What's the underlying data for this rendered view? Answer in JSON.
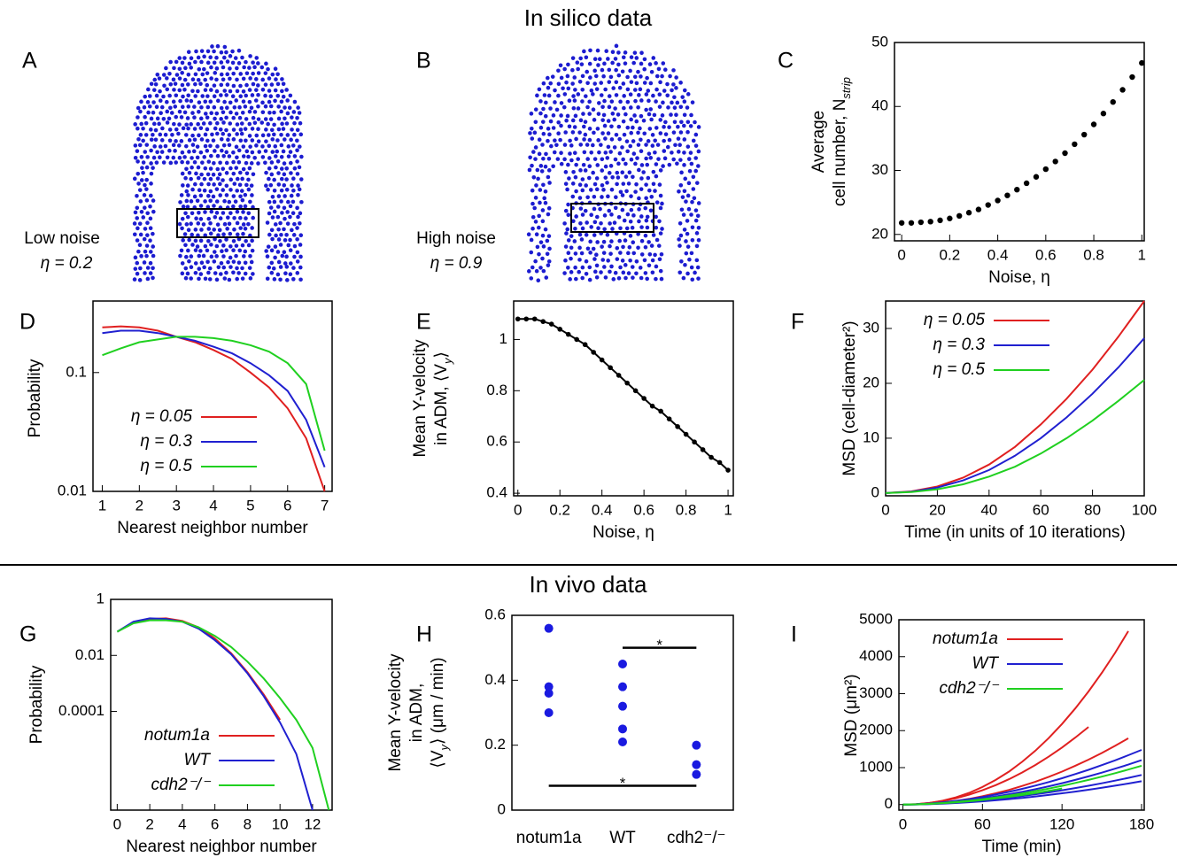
{
  "sections": [
    "In silico data",
    "In vivo data"
  ],
  "simulations": [
    {
      "label": "A",
      "caption": "Low noise",
      "eta": "η = 0.2"
    },
    {
      "label": "B",
      "caption": "High noise",
      "eta": "η = 0.9"
    }
  ],
  "chart_data": [
    {
      "type": "scatter",
      "label": "C",
      "x_label": "Noise, η",
      "y_label": [
        "Average",
        {
          "text": "cell number, N",
          "sub": "strip"
        }
      ],
      "color": "#000000",
      "x": [
        0,
        0.04,
        0.08,
        0.12,
        0.16,
        0.2,
        0.24,
        0.28,
        0.32,
        0.36,
        0.4,
        0.44,
        0.48,
        0.52,
        0.56,
        0.6,
        0.64,
        0.68,
        0.72,
        0.76,
        0.8,
        0.84,
        0.88,
        0.92,
        0.96,
        1
      ],
      "values": [
        21.8,
        21.8,
        21.9,
        22.0,
        22.2,
        22.5,
        22.9,
        23.4,
        23.9,
        24.6,
        25.3,
        26.1,
        27.0,
        28.0,
        29.0,
        30.2,
        31.4,
        32.7,
        34.1,
        35.6,
        37.2,
        38.9,
        40.7,
        42.6,
        44.6,
        46.8
      ],
      "xlim": [
        -0.03,
        1.01
      ],
      "xticks": [
        0,
        0.2,
        0.4,
        0.6,
        0.8,
        1
      ],
      "ylim": [
        19,
        50
      ],
      "yticks": [
        20,
        30,
        40,
        50
      ]
    },
    {
      "type": "line",
      "label": "D",
      "x_label": "Nearest neighbor number",
      "y_label": [
        "Probability"
      ],
      "log_y": true,
      "legend": "lower left",
      "x": [
        1,
        1.5,
        2,
        2.5,
        3,
        3.5,
        4,
        4.5,
        5,
        5.5,
        6,
        6.5,
        7
      ],
      "series": [
        {
          "name": "η = 0.05",
          "color": "#e02020",
          "values": [
            0.24,
            0.245,
            0.24,
            0.225,
            0.2,
            0.18,
            0.155,
            0.13,
            0.1,
            0.075,
            0.05,
            0.028,
            0.01
          ]
        },
        {
          "name": "η = 0.3",
          "color": "#2020d0",
          "values": [
            0.215,
            0.225,
            0.225,
            0.215,
            0.2,
            0.185,
            0.165,
            0.145,
            0.12,
            0.095,
            0.07,
            0.04,
            0.016
          ]
        },
        {
          "name": "η = 0.5",
          "color": "#20d020",
          "values": [
            0.14,
            0.16,
            0.18,
            0.19,
            0.2,
            0.2,
            0.195,
            0.185,
            0.17,
            0.15,
            0.12,
            0.08,
            0.022
          ]
        }
      ],
      "xlim": [
        0.75,
        7.2
      ],
      "xticks": [
        1,
        2,
        3,
        4,
        5,
        6,
        7
      ],
      "ylim": [
        0.01,
        0.4
      ],
      "yticks": [
        0.01,
        0.1
      ]
    },
    {
      "type": "line",
      "label": "E",
      "markers": true,
      "x_label": "Noise, η",
      "y_label": [
        "Mean Y-velocity",
        {
          "text": "in ADM, ⟨V",
          "sub": "y",
          "after": "⟩"
        }
      ],
      "color": "#000000",
      "x": [
        0,
        0.04,
        0.08,
        0.12,
        0.16,
        0.2,
        0.24,
        0.28,
        0.32,
        0.36,
        0.4,
        0.44,
        0.48,
        0.52,
        0.56,
        0.6,
        0.64,
        0.68,
        0.72,
        0.76,
        0.8,
        0.84,
        0.88,
        0.92,
        0.96,
        1
      ],
      "series": [
        {
          "color": "#000000",
          "values": [
            1.08,
            1.08,
            1.08,
            1.07,
            1.06,
            1.04,
            1.02,
            1.0,
            0.98,
            0.95,
            0.92,
            0.89,
            0.86,
            0.83,
            0.8,
            0.77,
            0.74,
            0.72,
            0.69,
            0.66,
            0.63,
            0.6,
            0.57,
            0.54,
            0.52,
            0.49
          ]
        }
      ],
      "xlim": [
        -0.02,
        1.025
      ],
      "xticks": [
        0,
        0.2,
        0.4,
        0.6,
        0.8,
        1
      ],
      "ylim": [
        0.39,
        1.15
      ],
      "yticks": [
        0.4,
        0.6,
        0.8,
        1
      ]
    },
    {
      "type": "line",
      "label": "F",
      "x_label": "Time (in units of 10 iterations)",
      "y_label": [
        "MSD (cell-diameter²)"
      ],
      "legend": "upper left",
      "x": [
        0,
        10,
        20,
        30,
        40,
        50,
        60,
        70,
        80,
        90,
        100
      ],
      "series": [
        {
          "name": "η = 0.05",
          "color": "#e02020",
          "values": [
            0,
            0.3,
            1.2,
            2.8,
            5.2,
            8.4,
            12.5,
            17.2,
            22.5,
            28.5,
            35
          ]
        },
        {
          "name": "η = 0.3",
          "color": "#2020d0",
          "values": [
            0,
            0.25,
            1,
            2.3,
            4.2,
            6.8,
            10,
            13.8,
            18.1,
            22.9,
            28.2
          ]
        },
        {
          "name": "η = 0.5",
          "color": "#20d020",
          "values": [
            0,
            0.2,
            0.7,
            1.6,
            3,
            4.8,
            7.2,
            10,
            13.2,
            16.8,
            20.6
          ]
        }
      ],
      "xlim": [
        0,
        100
      ],
      "xticks": [
        0,
        20,
        40,
        60,
        80,
        100
      ],
      "ylim": [
        -0.5,
        35
      ],
      "yticks": [
        0,
        10,
        20,
        30
      ]
    },
    {
      "type": "line",
      "label": "G",
      "x_label": "Nearest neighbor number",
      "y_label": [
        "Probability"
      ],
      "log_y": true,
      "legend": "lower left",
      "x": [
        0,
        1,
        2,
        3,
        4,
        5,
        6,
        7,
        8,
        9,
        10,
        11,
        12,
        13
      ],
      "series": [
        {
          "name": "notum1a",
          "color": "#e02020",
          "values": [
            0.07,
            0.15,
            0.2,
            0.21,
            0.17,
            0.1,
            0.04,
            0.012,
            0.0025,
            0.0004,
            5e-05,
            null,
            null,
            null
          ]
        },
        {
          "name": "WT",
          "color": "#2020d0",
          "values": [
            0.07,
            0.16,
            0.21,
            0.2,
            0.16,
            0.09,
            0.035,
            0.011,
            0.0023,
            0.00035,
            4e-05,
            3e-06,
            3e-08,
            null
          ]
        },
        {
          "name": "cdh2⁻/⁻",
          "color": "#20d020",
          "values": [
            0.07,
            0.14,
            0.18,
            0.18,
            0.16,
            0.1,
            0.05,
            0.02,
            0.006,
            0.0015,
            0.0003,
            5e-05,
            5e-06,
            3e-08
          ]
        }
      ],
      "xlim": [
        -0.4,
        13.2
      ],
      "xticks": [
        0,
        2,
        4,
        6,
        8,
        10,
        12
      ],
      "ylim": [
        3e-08,
        1
      ],
      "yticks": [
        0.0001,
        0.01,
        1
      ]
    },
    {
      "type": "strip",
      "label": "H",
      "y_label": [
        "Mean Y-velocity",
        "in ADM,",
        {
          "text": "⟨V",
          "sub": "y",
          "after": "⟩ (μm / min)"
        }
      ],
      "color": "#1a1ae0",
      "categories": [
        "notum1a",
        "WT",
        "cdh2⁻/⁻"
      ],
      "points": [
        [
          0.56,
          0.38,
          0.36,
          0.3
        ],
        [
          0.45,
          0.38,
          0.32,
          0.25,
          0.21
        ],
        [
          0.2,
          0.14,
          0.11
        ]
      ],
      "significance": [
        {
          "label": "*",
          "between": [
            "WT",
            "cdh2⁻/⁻"
          ],
          "y": 0.5
        },
        {
          "label": "*",
          "between": [
            "notum1a",
            "cdh2⁻/⁻"
          ],
          "y": 0.075
        }
      ],
      "ylim": [
        0,
        0.6
      ],
      "yticks": [
        0,
        0.2,
        0.4,
        0.6
      ]
    },
    {
      "type": "line",
      "label": "I",
      "x_label": "Time (min)",
      "y_label": [
        "MSD (μm²)"
      ],
      "legend": "upper left",
      "x": [
        0,
        10,
        20,
        30,
        40,
        50,
        60,
        70,
        80,
        90,
        100,
        110,
        120,
        130,
        140,
        150,
        160,
        170,
        180
      ],
      "series": [
        {
          "name": "notum1a",
          "color": "#e02020",
          "curves": [
            [
              0,
              9,
              42,
              103,
              194,
              318,
              475,
              666,
              893,
              1157,
              1460,
              1801,
              2180,
              2600,
              3060,
              3562,
              4105,
              4690,
              null
            ],
            [
              0,
              11,
              43,
              96,
              171,
              268,
              386,
              525,
              686,
              868,
              1071,
              1296,
              1543,
              1811,
              2100,
              null,
              null,
              null,
              null
            ],
            [
              0,
              6,
              25,
              56,
              99,
              155,
              223,
              304,
              397,
              503,
              620,
              751,
              893,
              1049,
              1216,
              1396,
              1588,
              1792,
              null
            ]
          ]
        },
        {
          "name": "WT",
          "color": "#2020d0",
          "curves": [
            [
              0,
              8,
              28,
              59,
              99,
              148,
              204,
              271,
              343,
              425,
              514,
              610,
              713,
              824,
              941,
              1066,
              1197,
              1335,
              1480
            ],
            [
              0,
              7,
              23,
              48,
              80,
              120,
              166,
              220,
              278,
              344,
              416,
              494,
              578,
              668,
              763,
              864,
              971,
              1082,
              1200
            ],
            [
              0,
              4,
              15,
              32,
              53,
              80,
              110,
              146,
              186,
              230,
              278,
              330,
              386,
              446,
              509,
              576,
              647,
              722,
              800
            ],
            [
              0,
              3,
              12,
              25,
              42,
              63,
              87,
              115,
              146,
              181,
              219,
              260,
              304,
              351,
              401,
              454,
              510,
              568,
              630
            ]
          ]
        },
        {
          "name": "cdh2⁻/⁻",
          "color": "#20d020",
          "curves": [
            [
              0,
              6,
              20,
              42,
              70,
              105,
              145,
              192,
              244,
              301,
              364,
              433,
              506,
              585,
              668,
              756,
              849,
              947,
              1050
            ],
            [
              0,
              5,
              17,
              36,
              60,
              90,
              124,
              165,
              209,
              258,
              312,
              371,
              434,
              null,
              null,
              null,
              null,
              null,
              null
            ]
          ]
        }
      ],
      "xlim": [
        -3,
        182
      ],
      "xticks": [
        0,
        60,
        120,
        180
      ],
      "ylim": [
        -150,
        5000
      ],
      "yticks": [
        0,
        1000,
        2000,
        3000,
        4000,
        5000
      ]
    }
  ]
}
